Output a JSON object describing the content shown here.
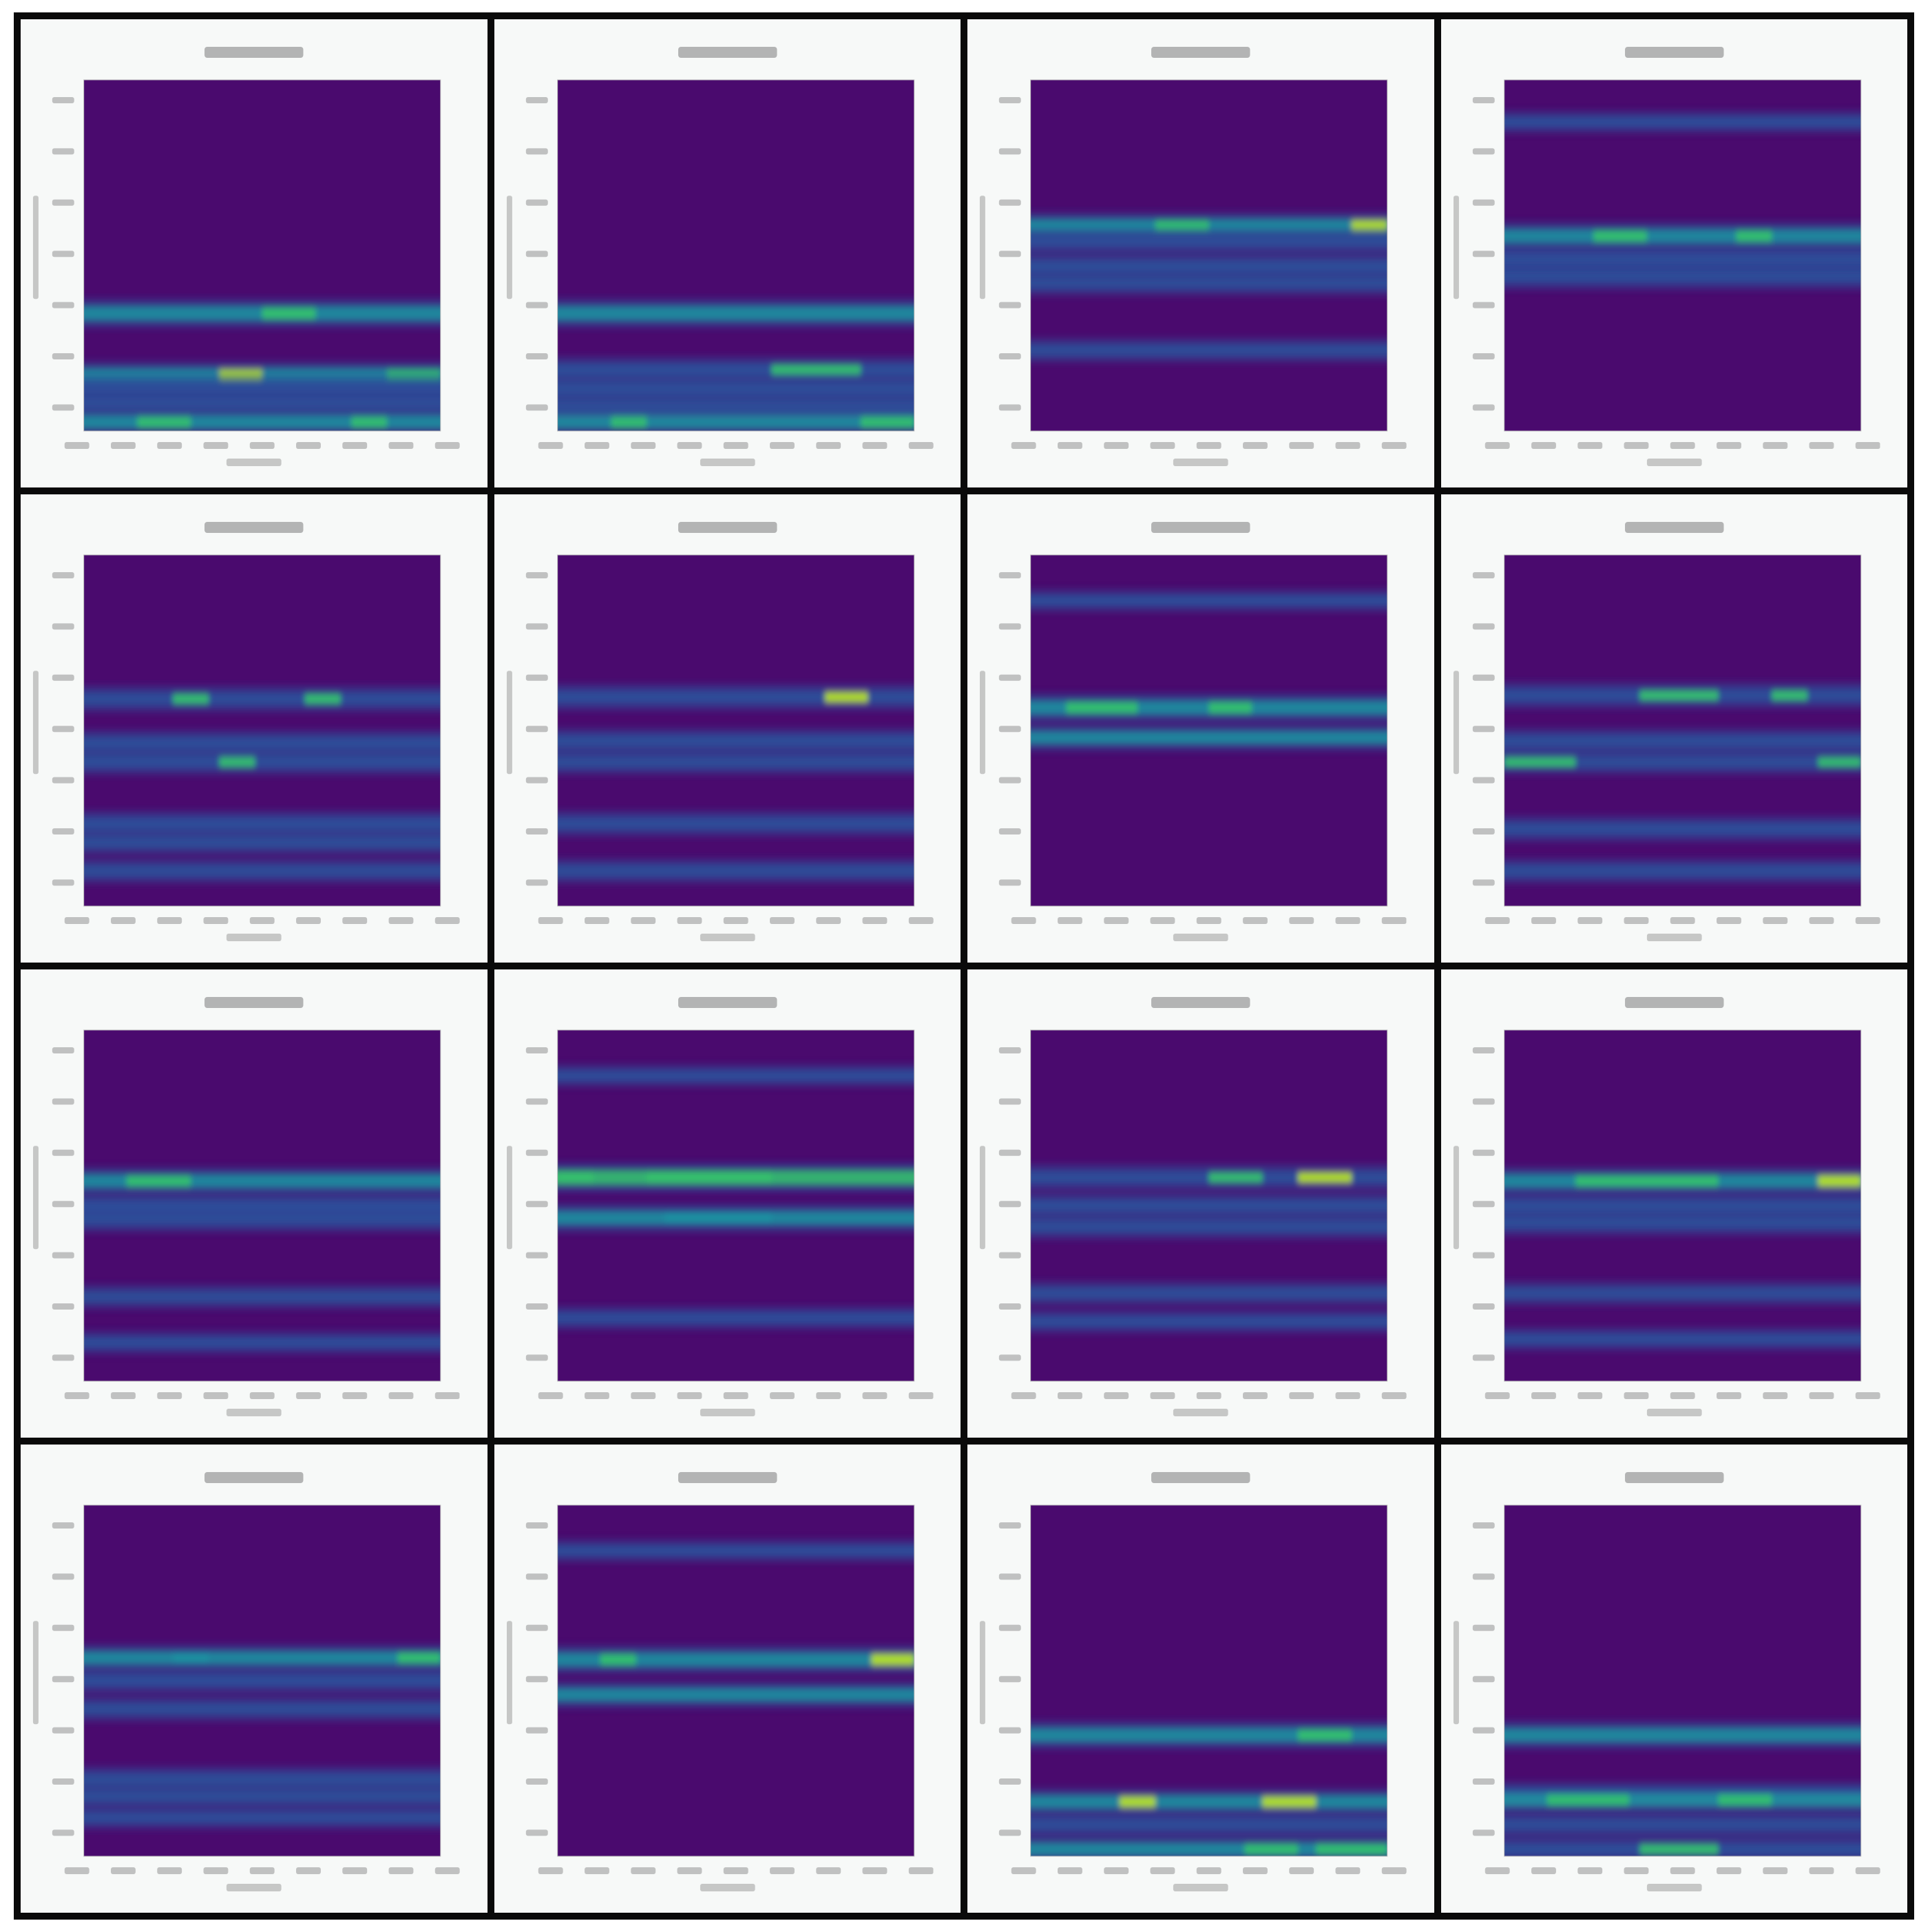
{
  "colors": {
    "background": "#4a0a6e",
    "low": "#2b4f9a",
    "mid": "#1f8fa0",
    "high": "#35c06e",
    "peak": "#b5e01f"
  },
  "chart_data": [
    {
      "type": "heatmap",
      "panel": 1,
      "bands": [
        {
          "f": 0.335,
          "level": 0.75,
          "hot": [
            [
              0.5,
              0.65,
              0.9
            ]
          ]
        },
        {
          "f": 0.16,
          "level": 0.6,
          "hot": [
            [
              0.38,
              0.5,
              1.0
            ],
            [
              0.85,
              1.0,
              0.8
            ]
          ]
        },
        {
          "f": 0.125,
          "level": 0.5,
          "hot": []
        },
        {
          "f": 0.08,
          "level": 0.45,
          "hot": []
        },
        {
          "f": 0.025,
          "level": 0.6,
          "hot": [
            [
              0.15,
              0.3,
              0.8
            ],
            [
              0.75,
              0.85,
              0.8
            ]
          ]
        }
      ]
    },
    {
      "type": "heatmap",
      "panel": 2,
      "bands": [
        {
          "f": 0.335,
          "level": 0.75,
          "hot": []
        },
        {
          "f": 0.175,
          "level": 0.5,
          "hot": [
            [
              0.6,
              0.85,
              0.85
            ]
          ]
        },
        {
          "f": 0.12,
          "level": 0.5,
          "hot": []
        },
        {
          "f": 0.07,
          "level": 0.45,
          "hot": []
        },
        {
          "f": 0.025,
          "level": 0.6,
          "hot": [
            [
              0.15,
              0.25,
              0.8
            ],
            [
              0.85,
              1.0,
              0.8
            ]
          ]
        }
      ]
    },
    {
      "type": "heatmap",
      "panel": 3,
      "bands": [
        {
          "f": 0.585,
          "level": 0.6,
          "hot": [
            [
              0.9,
              1.0,
              0.95
            ],
            [
              0.35,
              0.5,
              0.85
            ]
          ]
        },
        {
          "f": 0.54,
          "level": 0.5,
          "hot": []
        },
        {
          "f": 0.47,
          "level": 0.5,
          "hot": []
        },
        {
          "f": 0.42,
          "level": 0.4,
          "hot": []
        },
        {
          "f": 0.23,
          "level": 0.4,
          "hot": []
        }
      ]
    },
    {
      "type": "heatmap",
      "panel": 4,
      "bands": [
        {
          "f": 0.555,
          "level": 0.7,
          "hot": [
            [
              0.25,
              0.4,
              0.9
            ],
            [
              0.65,
              0.75,
              0.9
            ]
          ]
        },
        {
          "f": 0.49,
          "level": 0.55,
          "hot": []
        },
        {
          "f": 0.44,
          "level": 0.55,
          "hot": []
        },
        {
          "f": 0.88,
          "level": 0.3,
          "hot": []
        }
      ]
    },
    {
      "type": "heatmap",
      "panel": 5,
      "bands": [
        {
          "f": 0.59,
          "level": 0.55,
          "hot": [
            [
              0.25,
              0.35,
              0.9
            ],
            [
              0.62,
              0.72,
              0.9
            ]
          ]
        },
        {
          "f": 0.465,
          "level": 0.5,
          "hot": []
        },
        {
          "f": 0.41,
          "level": 0.5,
          "hot": [
            [
              0.38,
              0.48,
              0.85
            ]
          ]
        },
        {
          "f": 0.235,
          "level": 0.5,
          "hot": []
        },
        {
          "f": 0.18,
          "level": 0.4,
          "hot": []
        },
        {
          "f": 0.1,
          "level": 0.45,
          "hot": []
        }
      ]
    },
    {
      "type": "heatmap",
      "panel": 6,
      "bands": [
        {
          "f": 0.595,
          "level": 0.55,
          "hot": [
            [
              0.75,
              0.87,
              0.95
            ]
          ]
        },
        {
          "f": 0.47,
          "level": 0.5,
          "hot": []
        },
        {
          "f": 0.41,
          "level": 0.45,
          "hot": []
        },
        {
          "f": 0.235,
          "level": 0.5,
          "hot": []
        },
        {
          "f": 0.1,
          "level": 0.45,
          "hot": []
        }
      ]
    },
    {
      "type": "heatmap",
      "panel": 7,
      "bands": [
        {
          "f": 0.565,
          "level": 0.75,
          "hot": [
            [
              0.1,
              0.3,
              0.9
            ],
            [
              0.5,
              0.62,
              0.9
            ]
          ]
        },
        {
          "f": 0.48,
          "level": 0.6,
          "hot": []
        },
        {
          "f": 0.87,
          "level": 0.3,
          "hot": []
        }
      ]
    },
    {
      "type": "heatmap",
      "panel": 8,
      "bands": [
        {
          "f": 0.6,
          "level": 0.55,
          "hot": [
            [
              0.38,
              0.6,
              0.9
            ],
            [
              0.75,
              0.85,
              0.9
            ]
          ]
        },
        {
          "f": 0.47,
          "level": 0.5,
          "hot": []
        },
        {
          "f": 0.41,
          "level": 0.45,
          "hot": [
            [
              0.0,
              0.2,
              0.8
            ],
            [
              0.88,
              1.0,
              0.8
            ]
          ]
        },
        {
          "f": 0.22,
          "level": 0.5,
          "hot": []
        },
        {
          "f": 0.1,
          "level": 0.45,
          "hot": []
        }
      ]
    },
    {
      "type": "heatmap",
      "panel": 9,
      "bands": [
        {
          "f": 0.57,
          "level": 0.65,
          "hot": [
            [
              0.12,
              0.3,
              0.85
            ]
          ]
        },
        {
          "f": 0.5,
          "level": 0.5,
          "hot": []
        },
        {
          "f": 0.46,
          "level": 0.45,
          "hot": []
        },
        {
          "f": 0.24,
          "level": 0.4,
          "hot": []
        },
        {
          "f": 0.11,
          "level": 0.35,
          "hot": []
        }
      ]
    },
    {
      "type": "heatmap",
      "panel": 10,
      "bands": [
        {
          "f": 0.58,
          "level": 0.8,
          "hot": [
            [
              0.0,
              0.1,
              0.85
            ],
            [
              0.25,
              0.6,
              0.85
            ]
          ]
        },
        {
          "f": 0.465,
          "level": 0.7,
          "hot": [
            [
              0.3,
              0.6,
              0.75
            ]
          ]
        },
        {
          "f": 0.87,
          "level": 0.3,
          "hot": []
        },
        {
          "f": 0.18,
          "level": 0.35,
          "hot": []
        }
      ]
    },
    {
      "type": "heatmap",
      "panel": 11,
      "bands": [
        {
          "f": 0.58,
          "level": 0.55,
          "hot": [
            [
              0.75,
              0.9,
              0.95
            ],
            [
              0.5,
              0.65,
              0.85
            ]
          ]
        },
        {
          "f": 0.5,
          "level": 0.5,
          "hot": []
        },
        {
          "f": 0.44,
          "level": 0.45,
          "hot": []
        },
        {
          "f": 0.25,
          "level": 0.4,
          "hot": []
        },
        {
          "f": 0.17,
          "level": 0.35,
          "hot": []
        }
      ]
    },
    {
      "type": "heatmap",
      "panel": 12,
      "bands": [
        {
          "f": 0.57,
          "level": 0.65,
          "hot": [
            [
              0.88,
              1.0,
              0.95
            ],
            [
              0.2,
              0.6,
              0.85
            ]
          ]
        },
        {
          "f": 0.5,
          "level": 0.5,
          "hot": []
        },
        {
          "f": 0.45,
          "level": 0.45,
          "hot": []
        },
        {
          "f": 0.25,
          "level": 0.4,
          "hot": []
        },
        {
          "f": 0.12,
          "level": 0.35,
          "hot": []
        }
      ]
    },
    {
      "type": "heatmap",
      "panel": 13,
      "bands": [
        {
          "f": 0.565,
          "level": 0.6,
          "hot": [
            [
              0.88,
              1.0,
              0.8
            ],
            [
              0.25,
              0.35,
              0.75
            ]
          ]
        },
        {
          "f": 0.5,
          "level": 0.5,
          "hot": []
        },
        {
          "f": 0.42,
          "level": 0.45,
          "hot": []
        },
        {
          "f": 0.22,
          "level": 0.45,
          "hot": []
        },
        {
          "f": 0.17,
          "level": 0.4,
          "hot": []
        },
        {
          "f": 0.11,
          "level": 0.35,
          "hot": []
        }
      ]
    },
    {
      "type": "heatmap",
      "panel": 14,
      "bands": [
        {
          "f": 0.56,
          "level": 0.7,
          "hot": [
            [
              0.12,
              0.22,
              0.9
            ],
            [
              0.88,
              1.0,
              0.95
            ]
          ]
        },
        {
          "f": 0.46,
          "level": 0.6,
          "hot": []
        },
        {
          "f": 0.87,
          "level": 0.3,
          "hot": []
        }
      ]
    },
    {
      "type": "heatmap",
      "panel": 15,
      "bands": [
        {
          "f": 0.345,
          "level": 0.7,
          "hot": [
            [
              0.75,
              0.9,
              0.85
            ]
          ]
        },
        {
          "f": 0.155,
          "level": 0.6,
          "hot": [
            [
              0.25,
              0.35,
              1.0
            ],
            [
              0.65,
              0.8,
              1.0
            ]
          ]
        },
        {
          "f": 0.09,
          "level": 0.45,
          "hot": []
        },
        {
          "f": 0.02,
          "level": 0.6,
          "hot": [
            [
              0.6,
              0.75,
              0.85
            ],
            [
              0.8,
              1.0,
              0.85
            ]
          ]
        }
      ]
    },
    {
      "type": "heatmap",
      "panel": 16,
      "bands": [
        {
          "f": 0.345,
          "level": 0.7,
          "hot": []
        },
        {
          "f": 0.175,
          "level": 0.5,
          "hot": []
        },
        {
          "f": 0.16,
          "level": 0.6,
          "hot": [
            [
              0.12,
              0.35,
              0.9
            ],
            [
              0.6,
              0.75,
              0.85
            ]
          ]
        },
        {
          "f": 0.09,
          "level": 0.45,
          "hot": []
        },
        {
          "f": 0.02,
          "level": 0.55,
          "hot": [
            [
              0.38,
              0.6,
              0.8
            ]
          ]
        }
      ]
    }
  ]
}
